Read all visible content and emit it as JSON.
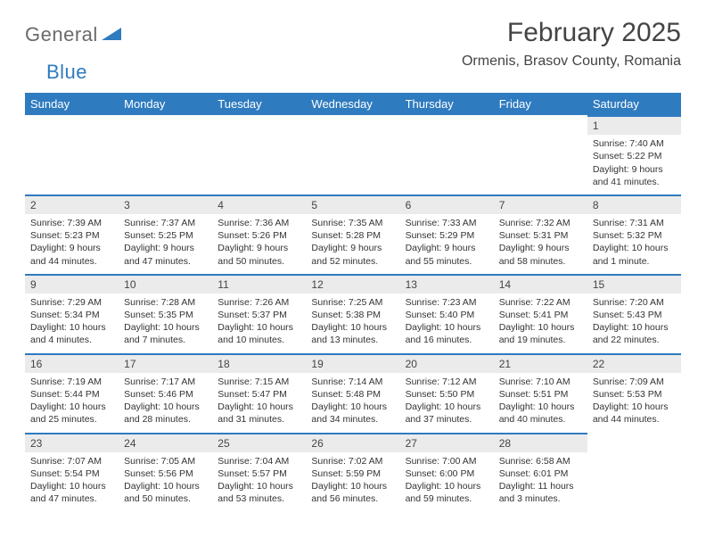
{
  "logo": {
    "word1": "General",
    "word2": "Blue"
  },
  "title": "February 2025",
  "location": "Ormenis, Brasov County, Romania",
  "colors": {
    "header_bg": "#2f7bbf",
    "header_text": "#ffffff",
    "daynum_bg": "#ebebeb",
    "row_border": "#2f7bbf",
    "body_text": "#333333",
    "logo_gray": "#6a6a6a",
    "logo_blue": "#2f7bbf",
    "page_bg": "#ffffff"
  },
  "weekdays": [
    "Sunday",
    "Monday",
    "Tuesday",
    "Wednesday",
    "Thursday",
    "Friday",
    "Saturday"
  ],
  "weeks": [
    [
      null,
      null,
      null,
      null,
      null,
      null,
      {
        "n": "1",
        "sr": "7:40 AM",
        "ss": "5:22 PM",
        "dl": "9 hours and 41 minutes."
      }
    ],
    [
      {
        "n": "2",
        "sr": "7:39 AM",
        "ss": "5:23 PM",
        "dl": "9 hours and 44 minutes."
      },
      {
        "n": "3",
        "sr": "7:37 AM",
        "ss": "5:25 PM",
        "dl": "9 hours and 47 minutes."
      },
      {
        "n": "4",
        "sr": "7:36 AM",
        "ss": "5:26 PM",
        "dl": "9 hours and 50 minutes."
      },
      {
        "n": "5",
        "sr": "7:35 AM",
        "ss": "5:28 PM",
        "dl": "9 hours and 52 minutes."
      },
      {
        "n": "6",
        "sr": "7:33 AM",
        "ss": "5:29 PM",
        "dl": "9 hours and 55 minutes."
      },
      {
        "n": "7",
        "sr": "7:32 AM",
        "ss": "5:31 PM",
        "dl": "9 hours and 58 minutes."
      },
      {
        "n": "8",
        "sr": "7:31 AM",
        "ss": "5:32 PM",
        "dl": "10 hours and 1 minute."
      }
    ],
    [
      {
        "n": "9",
        "sr": "7:29 AM",
        "ss": "5:34 PM",
        "dl": "10 hours and 4 minutes."
      },
      {
        "n": "10",
        "sr": "7:28 AM",
        "ss": "5:35 PM",
        "dl": "10 hours and 7 minutes."
      },
      {
        "n": "11",
        "sr": "7:26 AM",
        "ss": "5:37 PM",
        "dl": "10 hours and 10 minutes."
      },
      {
        "n": "12",
        "sr": "7:25 AM",
        "ss": "5:38 PM",
        "dl": "10 hours and 13 minutes."
      },
      {
        "n": "13",
        "sr": "7:23 AM",
        "ss": "5:40 PM",
        "dl": "10 hours and 16 minutes."
      },
      {
        "n": "14",
        "sr": "7:22 AM",
        "ss": "5:41 PM",
        "dl": "10 hours and 19 minutes."
      },
      {
        "n": "15",
        "sr": "7:20 AM",
        "ss": "5:43 PM",
        "dl": "10 hours and 22 minutes."
      }
    ],
    [
      {
        "n": "16",
        "sr": "7:19 AM",
        "ss": "5:44 PM",
        "dl": "10 hours and 25 minutes."
      },
      {
        "n": "17",
        "sr": "7:17 AM",
        "ss": "5:46 PM",
        "dl": "10 hours and 28 minutes."
      },
      {
        "n": "18",
        "sr": "7:15 AM",
        "ss": "5:47 PM",
        "dl": "10 hours and 31 minutes."
      },
      {
        "n": "19",
        "sr": "7:14 AM",
        "ss": "5:48 PM",
        "dl": "10 hours and 34 minutes."
      },
      {
        "n": "20",
        "sr": "7:12 AM",
        "ss": "5:50 PM",
        "dl": "10 hours and 37 minutes."
      },
      {
        "n": "21",
        "sr": "7:10 AM",
        "ss": "5:51 PM",
        "dl": "10 hours and 40 minutes."
      },
      {
        "n": "22",
        "sr": "7:09 AM",
        "ss": "5:53 PM",
        "dl": "10 hours and 44 minutes."
      }
    ],
    [
      {
        "n": "23",
        "sr": "7:07 AM",
        "ss": "5:54 PM",
        "dl": "10 hours and 47 minutes."
      },
      {
        "n": "24",
        "sr": "7:05 AM",
        "ss": "5:56 PM",
        "dl": "10 hours and 50 minutes."
      },
      {
        "n": "25",
        "sr": "7:04 AM",
        "ss": "5:57 PM",
        "dl": "10 hours and 53 minutes."
      },
      {
        "n": "26",
        "sr": "7:02 AM",
        "ss": "5:59 PM",
        "dl": "10 hours and 56 minutes."
      },
      {
        "n": "27",
        "sr": "7:00 AM",
        "ss": "6:00 PM",
        "dl": "10 hours and 59 minutes."
      },
      {
        "n": "28",
        "sr": "6:58 AM",
        "ss": "6:01 PM",
        "dl": "11 hours and 3 minutes."
      },
      null
    ]
  ],
  "labels": {
    "sunrise": "Sunrise: ",
    "sunset": "Sunset: ",
    "daylight": "Daylight: "
  }
}
